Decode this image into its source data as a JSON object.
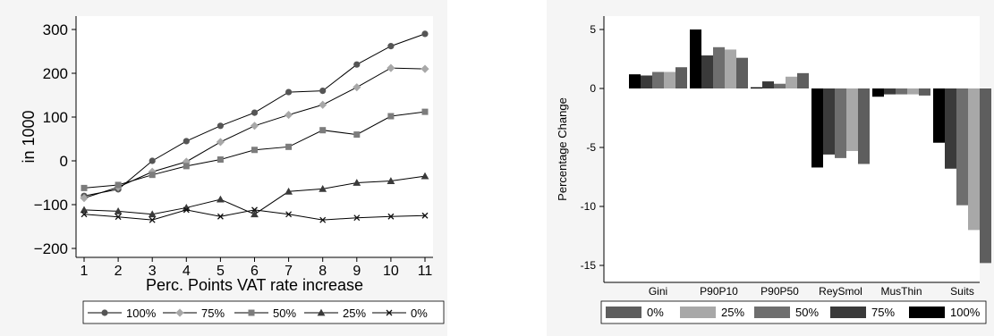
{
  "charts": [
    {
      "type": "line",
      "title": "",
      "xlabel": "Perc. Points VAT rate increase",
      "ylabel": "in 1000",
      "xlim": [
        1,
        11
      ],
      "ylim": [
        -200,
        300
      ],
      "x_ticks": [
        "1",
        "2",
        "3",
        "4",
        "5",
        "6",
        "7",
        "8",
        "9",
        "10",
        "11"
      ],
      "y_ticks": [
        "300",
        "200",
        "100",
        "0",
        "−100",
        "−200"
      ],
      "x": [
        1,
        2,
        3,
        4,
        5,
        6,
        7,
        8,
        9,
        10,
        11
      ],
      "legend_placement": "bottom",
      "grid": false,
      "series": [
        {
          "name": "100%",
          "marker": "circle",
          "values": [
            -80,
            -65,
            0,
            45,
            80,
            110,
            157,
            160,
            220,
            262,
            290
          ]
        },
        {
          "name": "75%",
          "marker": "diamond",
          "values": [
            -85,
            -60,
            -25,
            -2,
            43,
            80,
            105,
            128,
            168,
            212,
            210
          ]
        },
        {
          "name": "50%",
          "marker": "square",
          "values": [
            -62,
            -55,
            -32,
            -12,
            3,
            25,
            32,
            70,
            60,
            102,
            112
          ]
        },
        {
          "name": "25%",
          "marker": "triangle",
          "values": [
            -112,
            -115,
            -122,
            -107,
            -88,
            -122,
            -70,
            -64,
            -50,
            -46,
            -35
          ]
        },
        {
          "name": "0%",
          "marker": "x",
          "values": [
            -122,
            -128,
            -135,
            -112,
            -127,
            -112,
            -122,
            -135,
            -130,
            -127,
            -125
          ]
        }
      ]
    },
    {
      "type": "bar",
      "title": "",
      "xlabel": "",
      "ylabel": "Percentage Change",
      "ylim": [
        -15.5,
        5.5
      ],
      "y_ticks": [
        "5",
        "0",
        "-5",
        "-10",
        "-15"
      ],
      "categories": [
        "Gini",
        "P90P10",
        "P90P50",
        "ReySmol",
        "MusThin",
        "Suits"
      ],
      "legend_placement": "bottom",
      "grid": false,
      "series": [
        {
          "name": "100%",
          "color": "#000000",
          "values": [
            1.2,
            5.0,
            0.1,
            -6.7,
            -0.7,
            -4.6
          ]
        },
        {
          "name": "75%",
          "color": "#3a3a3a",
          "values": [
            1.1,
            2.8,
            0.6,
            -5.6,
            -0.5,
            -6.8
          ]
        },
        {
          "name": "50%",
          "color": "#6e6e6e",
          "values": [
            1.4,
            3.5,
            0.4,
            -5.9,
            -0.5,
            -9.9
          ]
        },
        {
          "name": "25%",
          "color": "#a8a8a8",
          "values": [
            1.4,
            3.3,
            1.0,
            -5.3,
            -0.5,
            -12.0
          ]
        },
        {
          "name": "0%",
          "color": "#5e5e5e",
          "values": [
            1.8,
            2.6,
            1.3,
            -6.4,
            -0.6,
            -14.8
          ]
        }
      ],
      "legend_order": [
        "0%",
        "25%",
        "50%",
        "75%",
        "100%"
      ]
    }
  ]
}
